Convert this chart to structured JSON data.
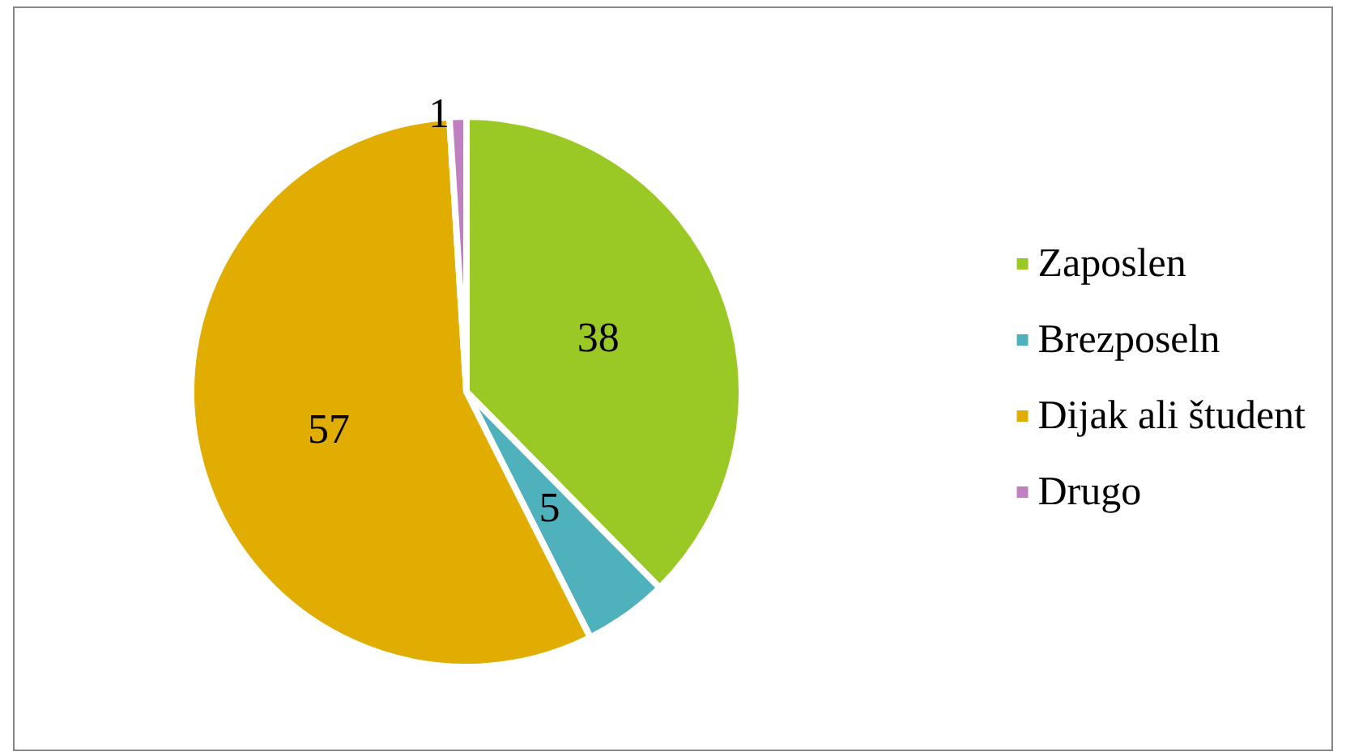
{
  "chart_data": {
    "type": "pie",
    "categories": [
      "Zaposlen",
      "Brezposeln",
      "Dijak ali študent",
      "Drugo"
    ],
    "values": [
      38,
      5,
      57,
      1
    ],
    "colors": [
      "#9ac925",
      "#4fb1bc",
      "#e0ad00",
      "#c07fc0"
    ],
    "data_labels": true,
    "legend": "right"
  }
}
